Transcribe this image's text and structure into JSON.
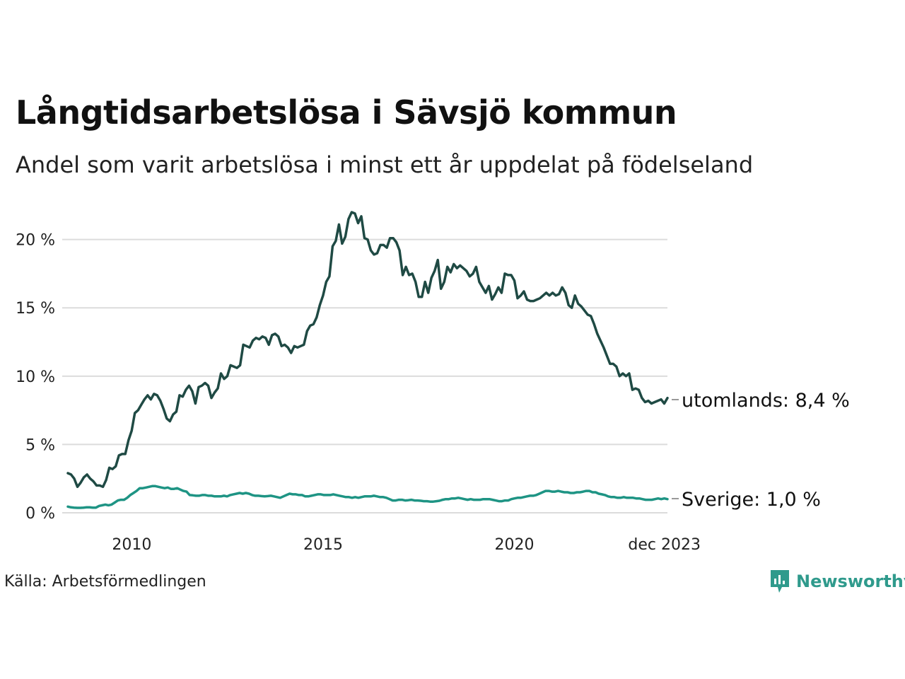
{
  "chart_data": {
    "type": "line",
    "title": "Långtidsarbetslösa i Sävsjö kommun",
    "subtitle": "Andel som varit arbetslösa i minst ett år uppdelat på födelseland",
    "source": "Källa: Arbetsförmedlingen",
    "x_start": 2008.33,
    "x_end": 2024.0,
    "xlim": [
      2008.2,
      2024.05
    ],
    "ylim": [
      0,
      22
    ],
    "yticks": [
      0,
      5,
      10,
      15,
      20
    ],
    "ytick_labels": [
      "0 %",
      "5 %",
      "10 %",
      "15 %",
      "20 %"
    ],
    "xticks": [
      2010,
      2015,
      2020,
      2023.92
    ],
    "xtick_labels": [
      "2010",
      "2015",
      "2020",
      "dec 2023"
    ],
    "grid": true,
    "series": [
      {
        "name": "utomlands",
        "label": "utomlands: 8,4 %",
        "color": "#1f4a44",
        "values": [
          2.9,
          2.8,
          2.5,
          1.9,
          2.2,
          2.6,
          2.8,
          2.5,
          2.3,
          2.0,
          2.0,
          1.9,
          2.4,
          3.3,
          3.2,
          3.4,
          4.2,
          4.3,
          4.3,
          5.3,
          6.0,
          7.3,
          7.5,
          7.9,
          8.3,
          8.6,
          8.3,
          8.7,
          8.6,
          8.2,
          7.6,
          6.9,
          6.7,
          7.2,
          7.4,
          8.6,
          8.5,
          9.0,
          9.3,
          8.9,
          8.0,
          9.2,
          9.3,
          9.5,
          9.3,
          8.4,
          8.8,
          9.1,
          10.2,
          9.8,
          10.0,
          10.8,
          10.7,
          10.6,
          10.8,
          12.3,
          12.2,
          12.1,
          12.6,
          12.8,
          12.7,
          12.9,
          12.8,
          12.3,
          13.0,
          13.1,
          12.9,
          12.2,
          12.3,
          12.1,
          11.7,
          12.2,
          12.1,
          12.2,
          12.3,
          13.3,
          13.7,
          13.8,
          14.3,
          15.2,
          15.9,
          16.9,
          17.3,
          19.5,
          19.9,
          21.1,
          19.7,
          20.2,
          21.5,
          22.0,
          21.9,
          21.2,
          21.7,
          20.1,
          20.0,
          19.2,
          18.9,
          19.0,
          19.6,
          19.6,
          19.4,
          20.1,
          20.1,
          19.8,
          19.2,
          17.4,
          18.0,
          17.4,
          17.5,
          16.9,
          15.8,
          15.8,
          16.9,
          16.1,
          17.2,
          17.7,
          18.5,
          16.4,
          16.9,
          18.0,
          17.6,
          18.2,
          17.9,
          18.1,
          17.9,
          17.7,
          17.3,
          17.5,
          18.0,
          16.9,
          16.5,
          16.1,
          16.6,
          15.6,
          16.0,
          16.5,
          16.1,
          17.5,
          17.4,
          17.4,
          17.0,
          15.7,
          15.9,
          16.2,
          15.6,
          15.5,
          15.5,
          15.6,
          15.7,
          15.9,
          16.1,
          15.9,
          16.1,
          15.9,
          16.0,
          16.5,
          16.1,
          15.2,
          15.0,
          15.9,
          15.3,
          15.1,
          14.8,
          14.5,
          14.4,
          13.8,
          13.1,
          12.6,
          12.1,
          11.5,
          10.9,
          10.9,
          10.7,
          10.0,
          10.2,
          10.0,
          10.2,
          9.0,
          9.1,
          9.0,
          8.4,
          8.1,
          8.2,
          8.0,
          8.1,
          8.2,
          8.3,
          8.0,
          8.4
        ]
      },
      {
        "name": "Sverige",
        "label": "Sverige: 1,0 %",
        "color": "#1e9484",
        "values": [
          0.45,
          0.4,
          0.38,
          0.36,
          0.36,
          0.38,
          0.4,
          0.4,
          0.38,
          0.38,
          0.5,
          0.55,
          0.6,
          0.55,
          0.6,
          0.75,
          0.9,
          0.95,
          0.95,
          1.1,
          1.3,
          1.45,
          1.6,
          1.8,
          1.8,
          1.85,
          1.9,
          1.95,
          1.95,
          1.9,
          1.85,
          1.8,
          1.85,
          1.75,
          1.75,
          1.8,
          1.7,
          1.6,
          1.55,
          1.3,
          1.28,
          1.25,
          1.25,
          1.3,
          1.3,
          1.25,
          1.25,
          1.2,
          1.2,
          1.2,
          1.25,
          1.2,
          1.3,
          1.35,
          1.4,
          1.45,
          1.4,
          1.45,
          1.4,
          1.3,
          1.25,
          1.25,
          1.22,
          1.2,
          1.22,
          1.25,
          1.2,
          1.15,
          1.1,
          1.2,
          1.3,
          1.4,
          1.35,
          1.35,
          1.3,
          1.3,
          1.2,
          1.2,
          1.25,
          1.3,
          1.35,
          1.35,
          1.3,
          1.3,
          1.3,
          1.35,
          1.3,
          1.25,
          1.2,
          1.15,
          1.15,
          1.1,
          1.15,
          1.1,
          1.15,
          1.2,
          1.2,
          1.2,
          1.25,
          1.2,
          1.15,
          1.15,
          1.1,
          1.0,
          0.9,
          0.9,
          0.95,
          0.95,
          0.9,
          0.92,
          0.95,
          0.9,
          0.9,
          0.88,
          0.85,
          0.85,
          0.82,
          0.82,
          0.85,
          0.88,
          0.95,
          1.0,
          1.0,
          1.05,
          1.05,
          1.1,
          1.05,
          1.0,
          0.95,
          1.0,
          0.95,
          0.95,
          0.95,
          1.0,
          1.0,
          1.0,
          0.95,
          0.9,
          0.85,
          0.85,
          0.9,
          0.9,
          1.0,
          1.05,
          1.1,
          1.1,
          1.15,
          1.2,
          1.25,
          1.25,
          1.3,
          1.4,
          1.5,
          1.6,
          1.6,
          1.55,
          1.55,
          1.6,
          1.55,
          1.5,
          1.5,
          1.45,
          1.45,
          1.5,
          1.5,
          1.55,
          1.6,
          1.6,
          1.5,
          1.5,
          1.4,
          1.35,
          1.3,
          1.2,
          1.15,
          1.15,
          1.1,
          1.1,
          1.15,
          1.1,
          1.1,
          1.1,
          1.05,
          1.05,
          1.0,
          0.95,
          0.95,
          0.95,
          1.0,
          1.05,
          1.0,
          1.05,
          1.0
        ]
      }
    ]
  },
  "brand": {
    "name": "Newsworthy",
    "icon": "newsworthy-logo-icon",
    "color": "#2f9a8c"
  }
}
